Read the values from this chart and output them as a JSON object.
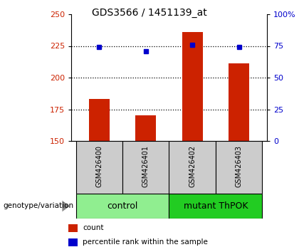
{
  "title": "GDS3566 / 1451139_at",
  "samples": [
    "GSM426400",
    "GSM426401",
    "GSM426402",
    "GSM426403"
  ],
  "bar_values": [
    183,
    170,
    236,
    211
  ],
  "percentile_values": [
    74,
    71,
    76,
    74
  ],
  "ylim_left": [
    150,
    250
  ],
  "ylim_right": [
    0,
    100
  ],
  "yticks_left": [
    150,
    175,
    200,
    225,
    250
  ],
  "yticks_right": [
    0,
    25,
    50,
    75,
    100
  ],
  "bar_color": "#cc2200",
  "dot_color": "#0000cc",
  "groups": [
    {
      "label": "control",
      "samples": [
        0,
        1
      ],
      "color": "#90ee90"
    },
    {
      "label": "mutant ThPOK",
      "samples": [
        2,
        3
      ],
      "color": "#22cc22"
    }
  ],
  "sample_box_color": "#cccccc",
  "legend_items": [
    {
      "color": "#cc2200",
      "label": "count"
    },
    {
      "color": "#0000cc",
      "label": "percentile rank within the sample"
    }
  ],
  "hline_ticks": [
    175,
    200,
    225
  ],
  "title_fontsize": 10,
  "tick_fontsize": 8,
  "sample_fontsize": 7,
  "group_fontsize": 9
}
